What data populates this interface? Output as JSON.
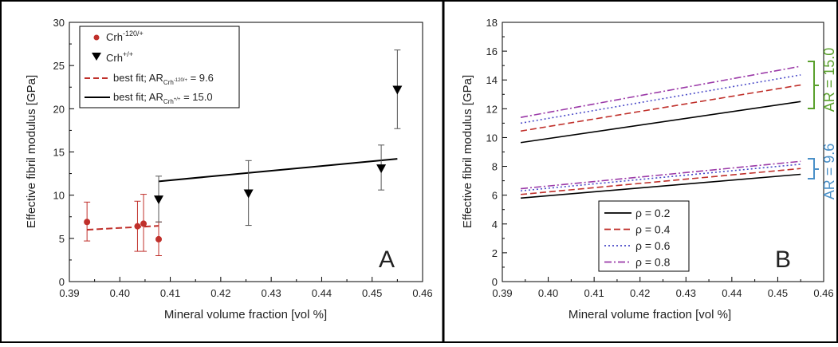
{
  "panels": {
    "a": {
      "letter": "A"
    },
    "b": {
      "letter": "B"
    }
  },
  "colors": {
    "crh120": "#c0302b",
    "wildtype": "#000000",
    "green_bracket": "#5aa02c",
    "blue_bracket": "#4a90c8"
  },
  "chart_data": [
    {
      "type": "scatter",
      "panel": "A",
      "xlabel": "Mineral volume fraction [vol %]",
      "ylabel": "Effective fibril modulus [GPa]",
      "xlim": [
        0.39,
        0.46
      ],
      "ylim": [
        0,
        30
      ],
      "x_ticks": [
        "0.39",
        "0.40",
        "0.41",
        "0.42",
        "0.43",
        "0.44",
        "0.45",
        "0.46"
      ],
      "y_ticks": [
        "0",
        "5",
        "10",
        "15",
        "20",
        "25",
        "30"
      ],
      "legend_position": "top-left",
      "legend": {
        "crh120_base": "Crh",
        "crh120_sup": "-120/+",
        "wt_base": "Crh",
        "wt_sup": "+/+",
        "fit120_prefix": "best fit; AR",
        "fit120_sub": "Crh",
        "fit120_subsup": "-120/+",
        "fit120_value": " = 9.6",
        "fitwt_prefix": "best fit; AR",
        "fitwt_sub": "Crh",
        "fitwt_subsup": "+/+",
        "fitwt_value": " = 15.0"
      },
      "series": [
        {
          "name": "Crh-120/+",
          "marker": "circle",
          "color": "#c0302b",
          "points": [
            {
              "x": 0.3935,
              "y": 6.9,
              "lo": 4.7,
              "hi": 9.2
            },
            {
              "x": 0.4035,
              "y": 6.4,
              "lo": 3.5,
              "hi": 9.3
            },
            {
              "x": 0.4047,
              "y": 6.7,
              "lo": 3.5,
              "hi": 10.1
            },
            {
              "x": 0.4077,
              "y": 4.9,
              "lo": 3.0,
              "hi": 6.9
            }
          ]
        },
        {
          "name": "Crh+/+",
          "marker": "triangle-down",
          "color": "#000000",
          "points": [
            {
              "x": 0.4077,
              "y": 9.5,
              "lo": 6.9,
              "hi": 12.2
            },
            {
              "x": 0.4255,
              "y": 10.2,
              "lo": 6.5,
              "hi": 14.0
            },
            {
              "x": 0.4518,
              "y": 13.1,
              "lo": 10.6,
              "hi": 15.8
            },
            {
              "x": 0.455,
              "y": 22.2,
              "lo": 17.7,
              "hi": 26.8
            }
          ]
        }
      ],
      "fits": [
        {
          "name": "best fit; AR Crh-120/+ = 9.6",
          "style": "dashed",
          "color": "#c0302b",
          "x": [
            0.3935,
            0.4077
          ],
          "y": [
            6.0,
            6.45
          ]
        },
        {
          "name": "best fit; AR Crh+/+ = 15.0",
          "style": "solid",
          "color": "#000000",
          "x": [
            0.4077,
            0.455
          ],
          "y": [
            11.6,
            14.2
          ]
        }
      ]
    },
    {
      "type": "line",
      "panel": "B",
      "xlabel": "Mineral volume fraction [vol %]",
      "ylabel": "Effective fibril modulus [GPa]",
      "xlim": [
        0.39,
        0.46
      ],
      "ylim": [
        0,
        18
      ],
      "x_ticks": [
        "0.39",
        "0.40",
        "0.41",
        "0.42",
        "0.43",
        "0.44",
        "0.45",
        "0.46"
      ],
      "y_ticks": [
        "0",
        "2",
        "4",
        "6",
        "8",
        "10",
        "12",
        "14",
        "16",
        "18"
      ],
      "legend_position": "bottom-left",
      "bracket_labels": {
        "high": "AR = 15.0",
        "low": "AR = 9.6"
      },
      "series": [
        {
          "name": "ρ = 0.2",
          "style": "solid",
          "color": "#000000",
          "x": [
            0.394,
            0.455
          ],
          "y_ar15": [
            9.65,
            12.5
          ],
          "y_ar96": [
            5.8,
            7.45
          ]
        },
        {
          "name": "ρ = 0.4",
          "style": "dashed",
          "color": "#c0302b",
          "x": [
            0.394,
            0.455
          ],
          "y_ar15": [
            10.45,
            13.65
          ],
          "y_ar96": [
            6.05,
            7.85
          ]
        },
        {
          "name": "ρ = 0.6",
          "style": "dotted",
          "color": "#4a4ac8",
          "x": [
            0.394,
            0.455
          ],
          "y_ar15": [
            11.0,
            14.35
          ],
          "y_ar96": [
            6.3,
            8.15
          ]
        },
        {
          "name": "ρ = 0.8",
          "style": "dashdot",
          "color": "#9b3aa8",
          "x": [
            0.394,
            0.455
          ],
          "y_ar15": [
            11.4,
            14.95
          ],
          "y_ar96": [
            6.45,
            8.35
          ]
        }
      ]
    }
  ]
}
